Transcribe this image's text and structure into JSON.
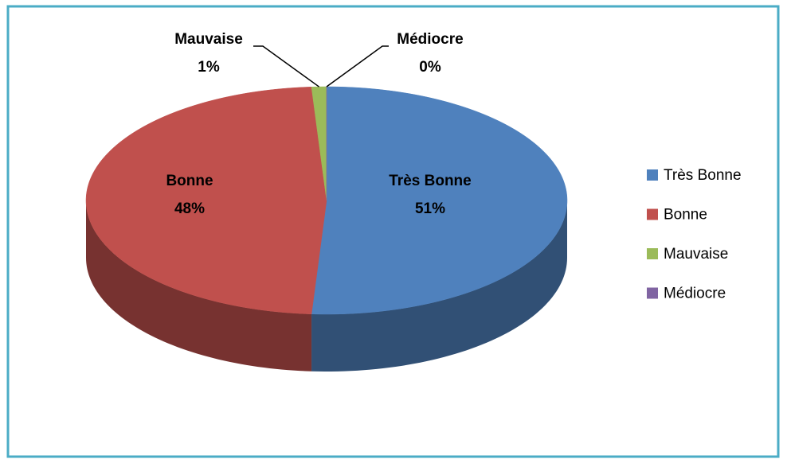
{
  "chart_data": {
    "type": "pie",
    "categories": [
      "Très Bonne",
      "Bonne",
      "Mauvaise",
      "Médiocre"
    ],
    "values": [
      51,
      48,
      1,
      0
    ],
    "value_labels": [
      "51%",
      "48%",
      "1%",
      "0%"
    ],
    "colors": [
      "#4f81bd",
      "#c0504d",
      "#9bbb59",
      "#8064a2"
    ],
    "legend": "right"
  }
}
